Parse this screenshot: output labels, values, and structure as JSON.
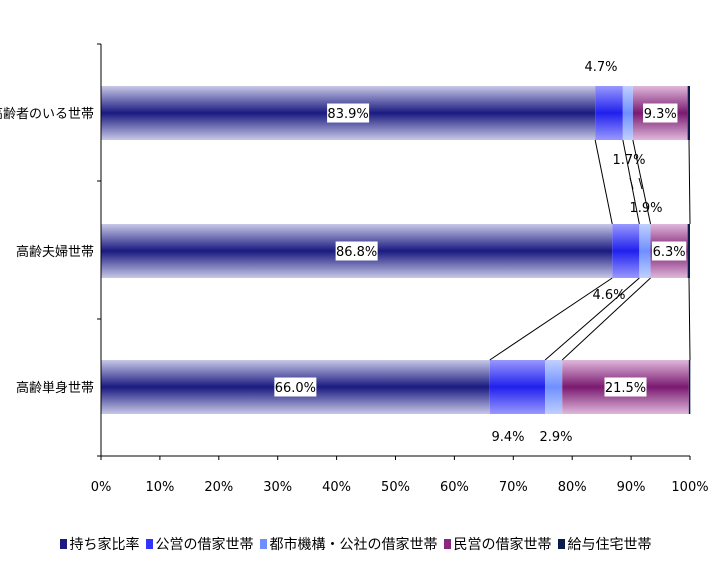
{
  "chart_data": {
    "type": "bar",
    "orientation": "horizontal",
    "stacked": true,
    "categories": [
      "高齢者のいる世帯",
      "高齢夫婦世帯",
      "高齢単身世帯"
    ],
    "series": [
      {
        "name": "持ち家比率",
        "values": [
          83.9,
          86.8,
          66.0
        ],
        "color": "#1a1a80",
        "labels": [
          "83.9%",
          "86.8%",
          "66.0%"
        ]
      },
      {
        "name": "公営の借家世帯",
        "values": [
          4.7,
          4.6,
          9.4
        ],
        "color": "#3333ff",
        "labels": [
          "4.7%",
          "4.6%",
          "9.4%"
        ]
      },
      {
        "name": "都市機構・公社の借家世帯",
        "values": [
          1.7,
          1.9,
          2.9
        ],
        "color": "#6f8fff",
        "labels": [
          "1.7%",
          "1.9%",
          "2.9%"
        ]
      },
      {
        "name": "民営の借家世帯",
        "values": [
          9.3,
          6.3,
          21.5
        ],
        "color": "#8a2a7e",
        "labels": [
          "9.3%",
          "6.3%",
          "21.5%"
        ]
      },
      {
        "name": "給与住宅世帯",
        "values": [
          0.4,
          0.4,
          0.2
        ],
        "color": "#0a1a4a",
        "labels": [
          "",
          "",
          ""
        ]
      }
    ],
    "xlim": [
      0,
      100
    ],
    "xticks": [
      "0%",
      "10%",
      "20%",
      "30%",
      "40%",
      "50%",
      "60%",
      "70%",
      "80%",
      "90%",
      "100%"
    ],
    "legend_position": "bottom"
  }
}
